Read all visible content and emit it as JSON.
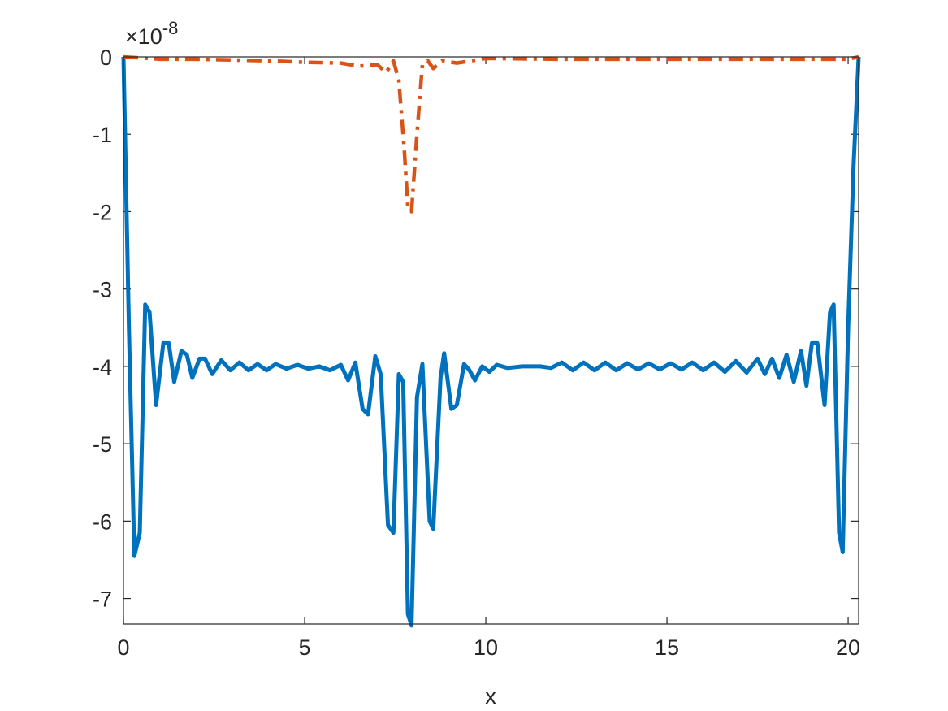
{
  "chart_data": {
    "type": "line",
    "x_label": "x",
    "y_exponent": {
      "base": "×10",
      "power": "-8"
    },
    "xlim": [
      0,
      20.29
    ],
    "xticks": [
      0,
      5,
      10,
      15,
      20
    ],
    "ylim": [
      -7.33,
      0
    ],
    "yticks": [
      -7,
      -6,
      -5,
      -4,
      -3,
      -2,
      -1,
      0
    ],
    "grid": false,
    "box": true,
    "series": [
      {
        "color": "#0072BD",
        "line_style": "solid",
        "x": [
          0,
          0.15,
          0.3,
          0.45,
          0.6,
          0.72,
          0.9,
          1.1,
          1.25,
          1.4,
          1.6,
          1.75,
          1.9,
          2.1,
          2.25,
          2.45,
          2.7,
          2.95,
          3.2,
          3.45,
          3.7,
          3.95,
          4.2,
          4.5,
          4.8,
          5.1,
          5.4,
          5.7,
          6.0,
          6.2,
          6.4,
          6.6,
          6.75,
          6.95,
          7.1,
          7.3,
          7.45,
          7.6,
          7.72,
          7.85,
          7.95,
          8.1,
          8.25,
          8.45,
          8.55,
          8.75,
          8.85,
          9.05,
          9.2,
          9.4,
          9.55,
          9.7,
          9.9,
          10.1,
          10.3,
          10.6,
          11.0,
          11.5,
          11.8,
          12.1,
          12.4,
          12.7,
          13.0,
          13.3,
          13.6,
          13.9,
          14.2,
          14.5,
          14.8,
          15.1,
          15.4,
          15.7,
          16.0,
          16.3,
          16.6,
          16.9,
          17.2,
          17.5,
          17.7,
          17.9,
          18.1,
          18.3,
          18.5,
          18.7,
          18.85,
          19.0,
          19.15,
          19.35,
          19.5,
          19.6,
          19.75,
          19.85,
          20.0,
          20.15,
          20.29
        ],
        "values": [
          0,
          -3.5,
          -6.45,
          -6.15,
          -3.2,
          -3.3,
          -4.5,
          -3.7,
          -3.7,
          -4.2,
          -3.8,
          -3.85,
          -4.15,
          -3.9,
          -3.9,
          -4.1,
          -3.92,
          -4.05,
          -3.95,
          -4.05,
          -3.97,
          -4.05,
          -3.97,
          -4.03,
          -3.98,
          -4.03,
          -4.0,
          -4.05,
          -3.98,
          -4.18,
          -3.95,
          -4.55,
          -4.62,
          -3.87,
          -4.1,
          -6.05,
          -6.15,
          -4.1,
          -4.2,
          -7.2,
          -7.35,
          -4.4,
          -3.97,
          -6.0,
          -6.1,
          -4.15,
          -3.83,
          -4.55,
          -4.5,
          -3.97,
          -4.05,
          -4.18,
          -4.0,
          -4.07,
          -3.98,
          -4.02,
          -4.0,
          -4.0,
          -4.02,
          -3.95,
          -4.05,
          -3.95,
          -4.05,
          -3.95,
          -4.05,
          -3.96,
          -4.04,
          -3.96,
          -4.04,
          -3.96,
          -4.04,
          -3.95,
          -4.05,
          -3.95,
          -4.07,
          -3.93,
          -4.08,
          -3.9,
          -4.1,
          -3.9,
          -4.15,
          -3.85,
          -4.2,
          -3.8,
          -4.25,
          -3.7,
          -3.7,
          -4.5,
          -3.3,
          -3.2,
          -6.15,
          -6.4,
          -3.5,
          -1.4,
          0
        ]
      },
      {
        "color": "#D95319",
        "line_style": "dash-dot",
        "x": [
          0,
          1,
          2,
          3,
          4,
          5,
          6,
          6.5,
          7,
          7.25,
          7.45,
          7.6,
          7.75,
          7.85,
          7.95,
          8.1,
          8.25,
          8.4,
          8.55,
          8.8,
          9.2,
          10,
          12,
          14,
          16,
          18,
          20,
          20.29
        ],
        "values": [
          0,
          -0.03,
          -0.03,
          -0.04,
          -0.05,
          -0.07,
          -0.08,
          -0.12,
          -0.1,
          -0.2,
          -0.05,
          -0.3,
          -1.2,
          -1.95,
          -2.0,
          -1.0,
          -0.1,
          -0.05,
          -0.15,
          -0.05,
          -0.08,
          -0.02,
          -0.03,
          -0.03,
          -0.03,
          -0.03,
          -0.03,
          0
        ]
      }
    ]
  }
}
